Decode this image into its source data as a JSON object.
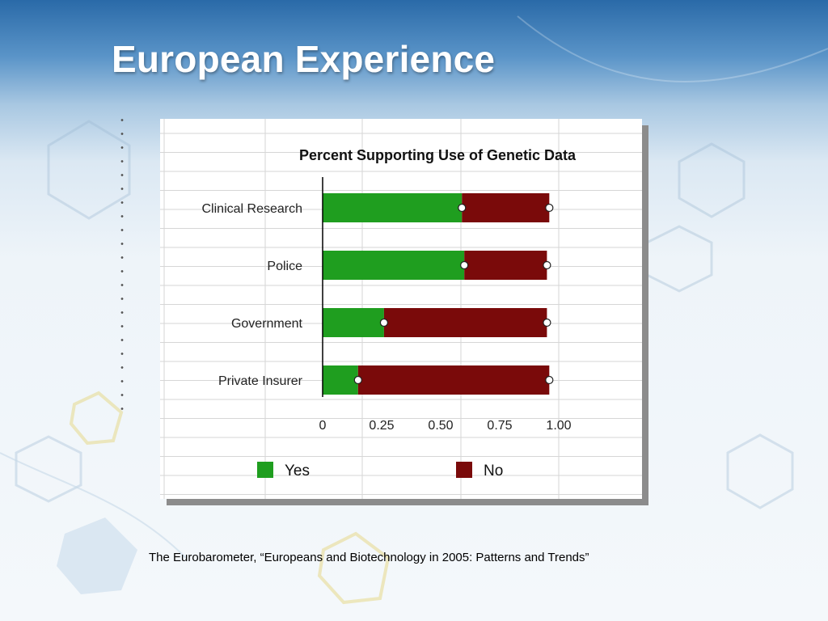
{
  "slide": {
    "title": "European Experience",
    "caption": "The Eurobarometer, “Europeans and Biotechnology in 2005: Patterns and Trends”"
  },
  "colors": {
    "yes": "#1f9e1f",
    "no": "#7a0a0a",
    "title_text": "#ffffff"
  },
  "chart_data": {
    "type": "bar",
    "orientation": "horizontal",
    "stacked": true,
    "title": "Percent Supporting Use of Genetic Data",
    "categories": [
      "Clinical Research",
      "Police",
      "Government",
      "Private Insurer"
    ],
    "series": [
      {
        "name": "Yes",
        "values": [
          0.59,
          0.6,
          0.26,
          0.15
        ]
      },
      {
        "name": "No",
        "values": [
          0.37,
          0.35,
          0.69,
          0.81
        ]
      }
    ],
    "xlim": [
      0,
      1.0
    ],
    "xticks": [
      0,
      0.25,
      0.5,
      0.75,
      1.0
    ],
    "xtick_labels": [
      "0",
      "0.25",
      "0.50",
      "0.75",
      "1.00"
    ],
    "xlabel": "",
    "ylabel": "",
    "grid": true,
    "legend": {
      "placement": "bottom",
      "entries": [
        "Yes",
        "No"
      ]
    },
    "markers": "open circles at segment ends"
  }
}
